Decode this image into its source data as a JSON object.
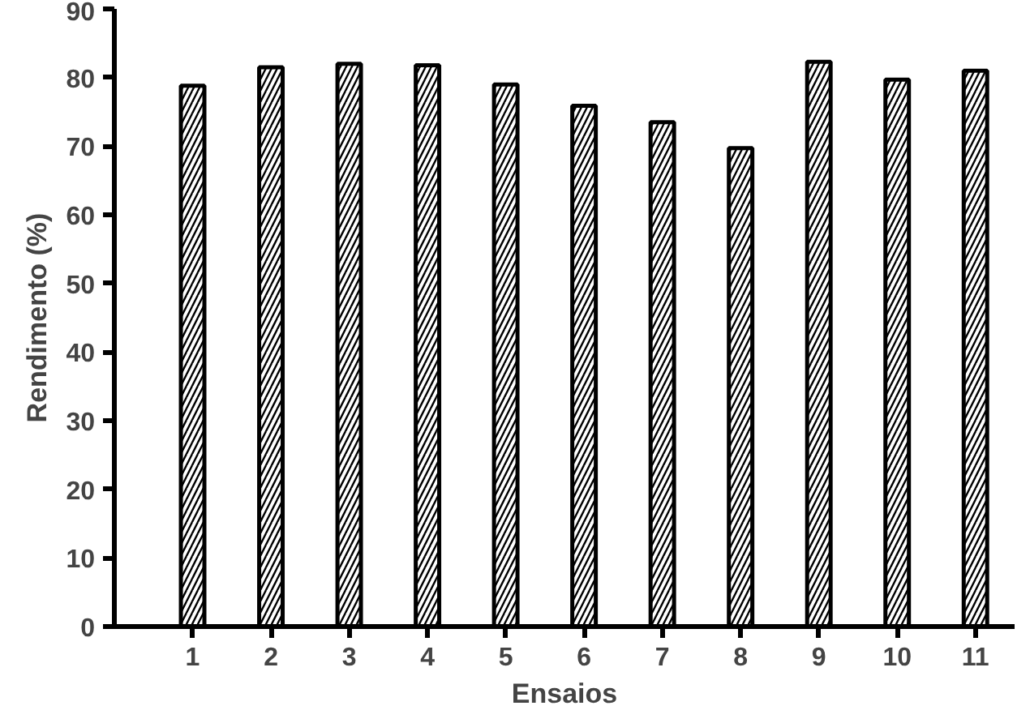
{
  "chart_data": {
    "type": "bar",
    "xlabel": "Ensaios",
    "ylabel": "Rendimento (%)",
    "categories": [
      "1",
      "2",
      "3",
      "4",
      "5",
      "6",
      "7",
      "8",
      "9",
      "10",
      "11"
    ],
    "values": [
      78.8,
      81.5,
      82,
      81.8,
      79,
      75.9,
      73.5,
      69.7,
      82.3,
      79.7,
      81
    ],
    "color": "#ffffff",
    "ylim": [
      0,
      90
    ],
    "yticks": [
      0,
      10,
      20,
      30,
      40,
      50,
      60,
      70,
      80,
      90
    ],
    "grid": false
  }
}
